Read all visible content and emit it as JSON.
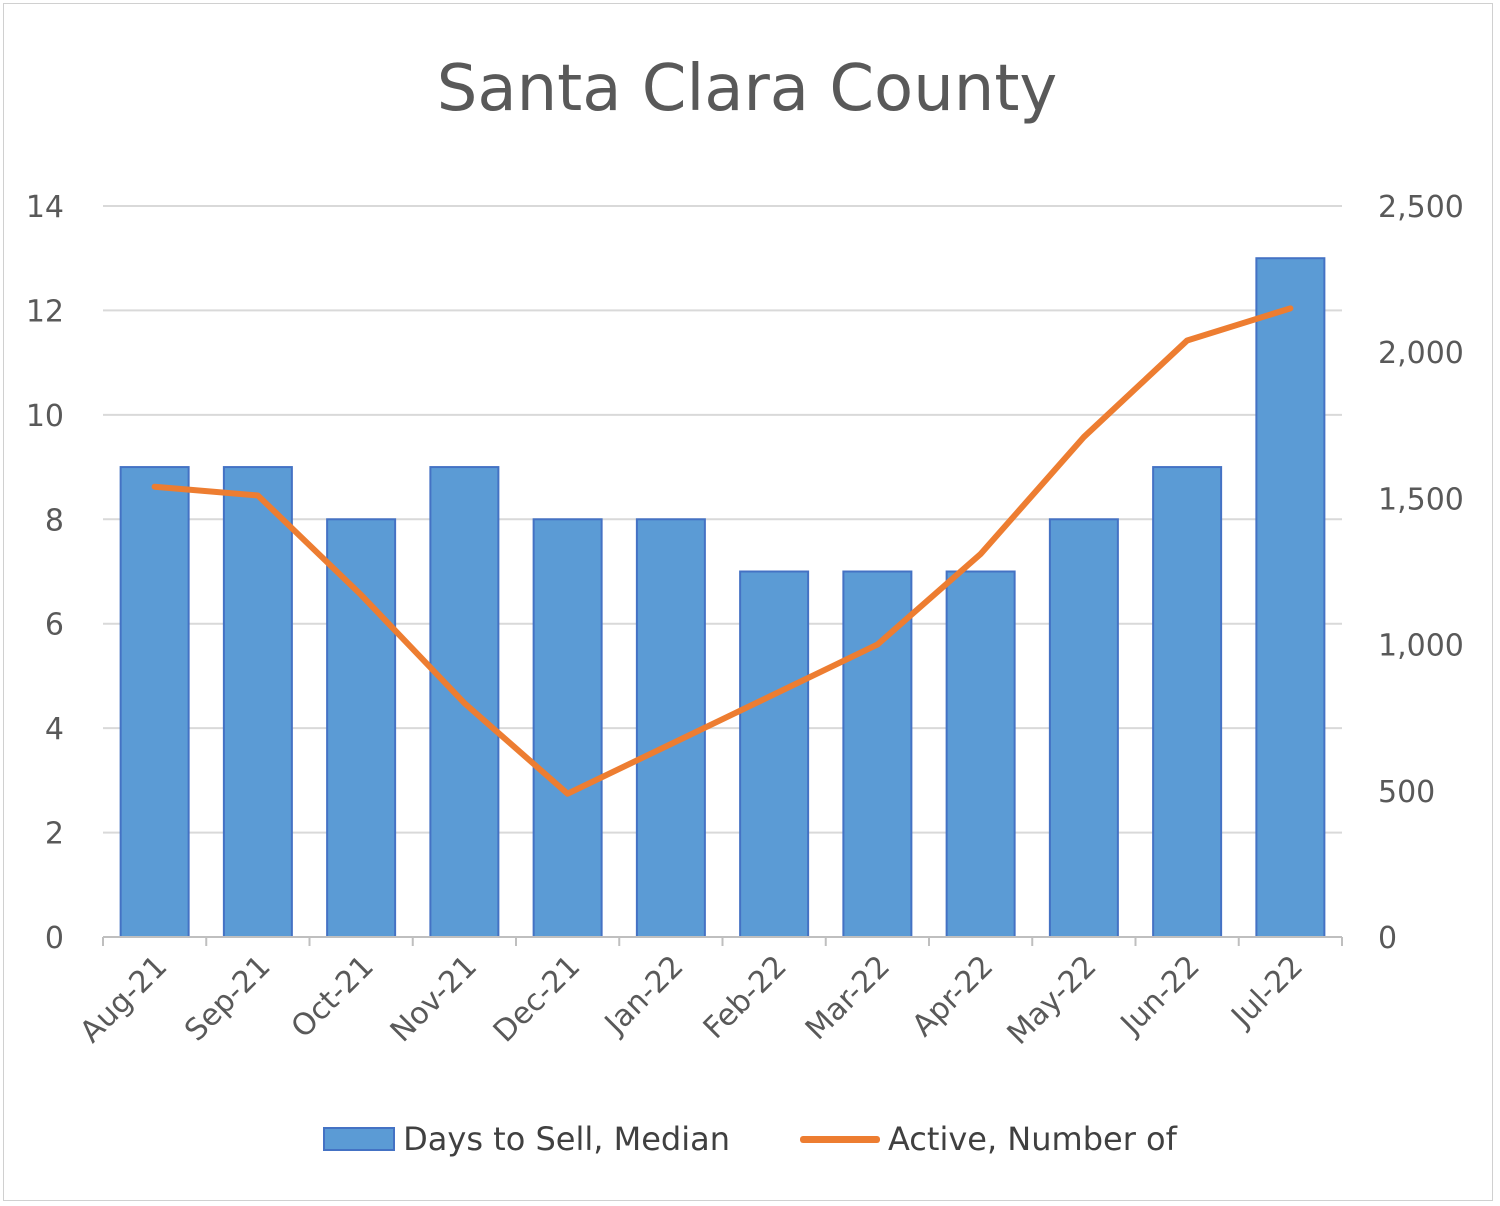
{
  "chart_data": {
    "type": "bar",
    "title": "Santa Clara County",
    "categories": [
      "Aug-21",
      "Sep-21",
      "Oct-21",
      "Nov-21",
      "Dec-21",
      "Jan-22",
      "Feb-22",
      "Mar-22",
      "Apr-22",
      "May-22",
      "Jun-22",
      "Jul-22"
    ],
    "series": [
      {
        "name": "Days to Sell, Median",
        "type": "bar",
        "axis": "left",
        "color": "#5b9bd5",
        "values": [
          9,
          9,
          8,
          9,
          8,
          8,
          7,
          7,
          7,
          8,
          9,
          13
        ]
      },
      {
        "name": "Active, Number of",
        "type": "line",
        "axis": "right",
        "color": "#ed7d31",
        "values": [
          1540,
          1510,
          1170,
          800,
          490,
          660,
          830,
          1000,
          1310,
          1710,
          2040,
          2150
        ]
      }
    ],
    "y_left": {
      "ylim": [
        0,
        14
      ],
      "ticks": [
        "0",
        "2",
        "4",
        "6",
        "8",
        "10",
        "12",
        "14"
      ]
    },
    "y_right": {
      "ylim": [
        0,
        2500
      ],
      "ticks": [
        "0",
        "500",
        "1,000",
        "1,500",
        "2,000",
        "2,500"
      ]
    },
    "grid": true,
    "legend": "bottom"
  }
}
